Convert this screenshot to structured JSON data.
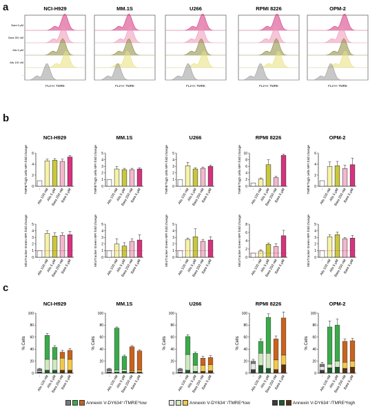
{
  "panels": {
    "a": "a",
    "b": "b",
    "c": "c"
  },
  "cell_lines": [
    "NCI-H929",
    "MM.1S",
    "U266",
    "RPMI 8226",
    "OPM-2"
  ],
  "panel_a": {
    "xlabel": "FL2-H: TMRE",
    "row_labels": [
      "Bara 5 μM",
      "Bara 250 nM",
      "Alis 5 μM",
      "Alis 100 nM",
      "-"
    ],
    "row_colors": [
      "#d6337e",
      "#ee95b8",
      "#8d8a3c",
      "#e8e07a",
      "#9a9a9a"
    ],
    "peak_offsets": [
      [
        58,
        56,
        55,
        60,
        32
      ],
      [
        50,
        52,
        50,
        48,
        34
      ],
      [
        54,
        52,
        52,
        56,
        33
      ],
      [
        56,
        54,
        55,
        58,
        32
      ],
      [
        54,
        50,
        53,
        55,
        34
      ]
    ]
  },
  "panel_b": {
    "categories": [
      "-",
      "Alis 100 nM",
      "Alis 5 μM",
      "Bara 250 nM",
      "Bara 5 μM"
    ],
    "bar_colors": [
      "#ffffff",
      "#f6f2a8",
      "#c8c83c",
      "#f4b8cc",
      "#d6337e"
    ],
    "row1_ylabel": "TMRE^high cells MFI fold change",
    "row2_ylabel": "MitoTracker Green MFI fold change",
    "row1": [
      {
        "cell": "NCI-H929",
        "ymax": 6,
        "ticks": [
          0,
          2,
          4,
          6
        ],
        "values": [
          1,
          4.6,
          4.7,
          4.5,
          5.3
        ],
        "err": [
          0,
          0.3,
          0.3,
          0.4,
          0.3
        ]
      },
      {
        "cell": "MM.1S",
        "ymax": 5,
        "ticks": [
          0,
          1,
          2,
          3,
          4,
          5
        ],
        "values": [
          1,
          2.6,
          2.5,
          2.5,
          2.6
        ],
        "err": [
          0,
          0.4,
          0.2,
          0.2,
          0.2
        ]
      },
      {
        "cell": "U266",
        "ymax": 5,
        "ticks": [
          0,
          1,
          2,
          3,
          4,
          5
        ],
        "values": [
          1,
          3.1,
          2.6,
          2.7,
          3.0
        ],
        "err": [
          0,
          0.5,
          0.2,
          0.2,
          0.2
        ]
      },
      {
        "cell": "RPMI 8226",
        "ymax": 10,
        "ticks": [
          0,
          2,
          4,
          6,
          8,
          10
        ],
        "values": [
          1,
          2.2,
          6.5,
          2.6,
          9.3
        ],
        "err": [
          0,
          0.3,
          1.5,
          0.4,
          0.4
        ]
      },
      {
        "cell": "OPM-2",
        "ymax": 6,
        "ticks": [
          0,
          2,
          4,
          6
        ],
        "values": [
          1,
          3.6,
          3.7,
          3.2,
          3.9
        ],
        "err": [
          0,
          0.8,
          0.8,
          0.6,
          1.2
        ]
      }
    ],
    "row2": [
      {
        "cell": "NCI-H929",
        "ymax": 5,
        "ticks": [
          0,
          1,
          2,
          3,
          4,
          5
        ],
        "values": [
          1,
          3.6,
          3.2,
          3.3,
          3.4
        ],
        "err": [
          0,
          0.4,
          0.5,
          0.4,
          0.5
        ]
      },
      {
        "cell": "MM.1S",
        "ymax": 5,
        "ticks": [
          0,
          1,
          2,
          3,
          4,
          5
        ],
        "values": [
          1,
          2.0,
          1.7,
          2.4,
          2.6
        ],
        "err": [
          0,
          0.8,
          0.5,
          0.4,
          0.8
        ]
      },
      {
        "cell": "U266",
        "ymax": 5,
        "ticks": [
          0,
          1,
          2,
          3,
          4,
          5
        ],
        "values": [
          1,
          2.7,
          3.1,
          2.4,
          2.6
        ],
        "err": [
          0,
          0.2,
          1.2,
          0.3,
          0.5
        ]
      },
      {
        "cell": "RPMI 8226",
        "ymax": 8,
        "ticks": [
          0,
          2,
          4,
          6,
          8
        ],
        "values": [
          1,
          1.5,
          3.1,
          2.6,
          5.2
        ],
        "err": [
          0,
          0.3,
          0.3,
          0.7,
          1.3
        ]
      },
      {
        "cell": "OPM-2",
        "ymax": 5,
        "ticks": [
          0,
          1,
          2,
          3,
          4,
          5
        ],
        "values": [
          1,
          3.1,
          3.4,
          2.8,
          2.9
        ],
        "err": [
          0,
          0.3,
          0.4,
          0.2,
          0.4
        ]
      }
    ]
  },
  "panel_c": {
    "ylabel": "% Cells",
    "categories": [
      "-",
      "Alis 100 nM",
      "Alis 5 μM",
      "Bara 250 nM",
      "Bara 5 μM"
    ],
    "yticks": [
      0,
      20,
      40,
      60,
      80,
      100
    ],
    "ymax": 100,
    "legend": [
      {
        "label": "Annexin V-DY634⁺/TMRE^low",
        "colors": [
          "#7a7a7a",
          "#3aaa4a",
          "#c8621e"
        ]
      },
      {
        "label": "Annexin V-DY634⁻/TMRE^low",
        "colors": [
          "#e8e8e8",
          "#cfe8c0",
          "#f2c94c"
        ]
      },
      {
        "label": "Annexin V-DY634⁻/TMRE^high",
        "colors": [
          "#3a3a3a",
          "#1e5a2a",
          "#5a3010"
        ]
      }
    ],
    "charts": [
      {
        "cell": "NCI-H929",
        "top": [
          3,
          40,
          20,
          10,
          15
        ],
        "mid": [
          2,
          18,
          18,
          20,
          18
        ],
        "bot": [
          2,
          5,
          5,
          5,
          5
        ],
        "err": [
          1,
          3,
          3,
          3,
          3
        ]
      },
      {
        "cell": "MM.1S",
        "top": [
          3,
          70,
          22,
          40,
          32
        ],
        "mid": [
          2,
          3,
          3,
          2,
          3
        ],
        "bot": [
          2,
          2,
          3,
          2,
          2
        ],
        "err": [
          1,
          2,
          2,
          2,
          2
        ]
      },
      {
        "cell": "U266",
        "top": [
          3,
          30,
          20,
          12,
          12
        ],
        "mid": [
          2,
          26,
          10,
          10,
          10
        ],
        "bot": [
          2,
          5,
          3,
          3,
          4
        ],
        "err": [
          1,
          3,
          2,
          3,
          3
        ]
      },
      {
        "cell": "RPMI 8226",
        "top": [
          4,
          20,
          60,
          35,
          62
        ],
        "mid": [
          10,
          20,
          25,
          16,
          16
        ],
        "bot": [
          6,
          13,
          8,
          6,
          14
        ],
        "err": [
          3,
          4,
          6,
          5,
          10
        ]
      },
      {
        "cell": "OPM-2",
        "top": [
          4,
          62,
          60,
          35,
          34
        ],
        "mid": [
          6,
          6,
          10,
          10,
          10
        ],
        "bot": [
          5,
          9,
          10,
          8,
          10
        ],
        "err": [
          3,
          10,
          10,
          4,
          4
        ]
      }
    ]
  }
}
